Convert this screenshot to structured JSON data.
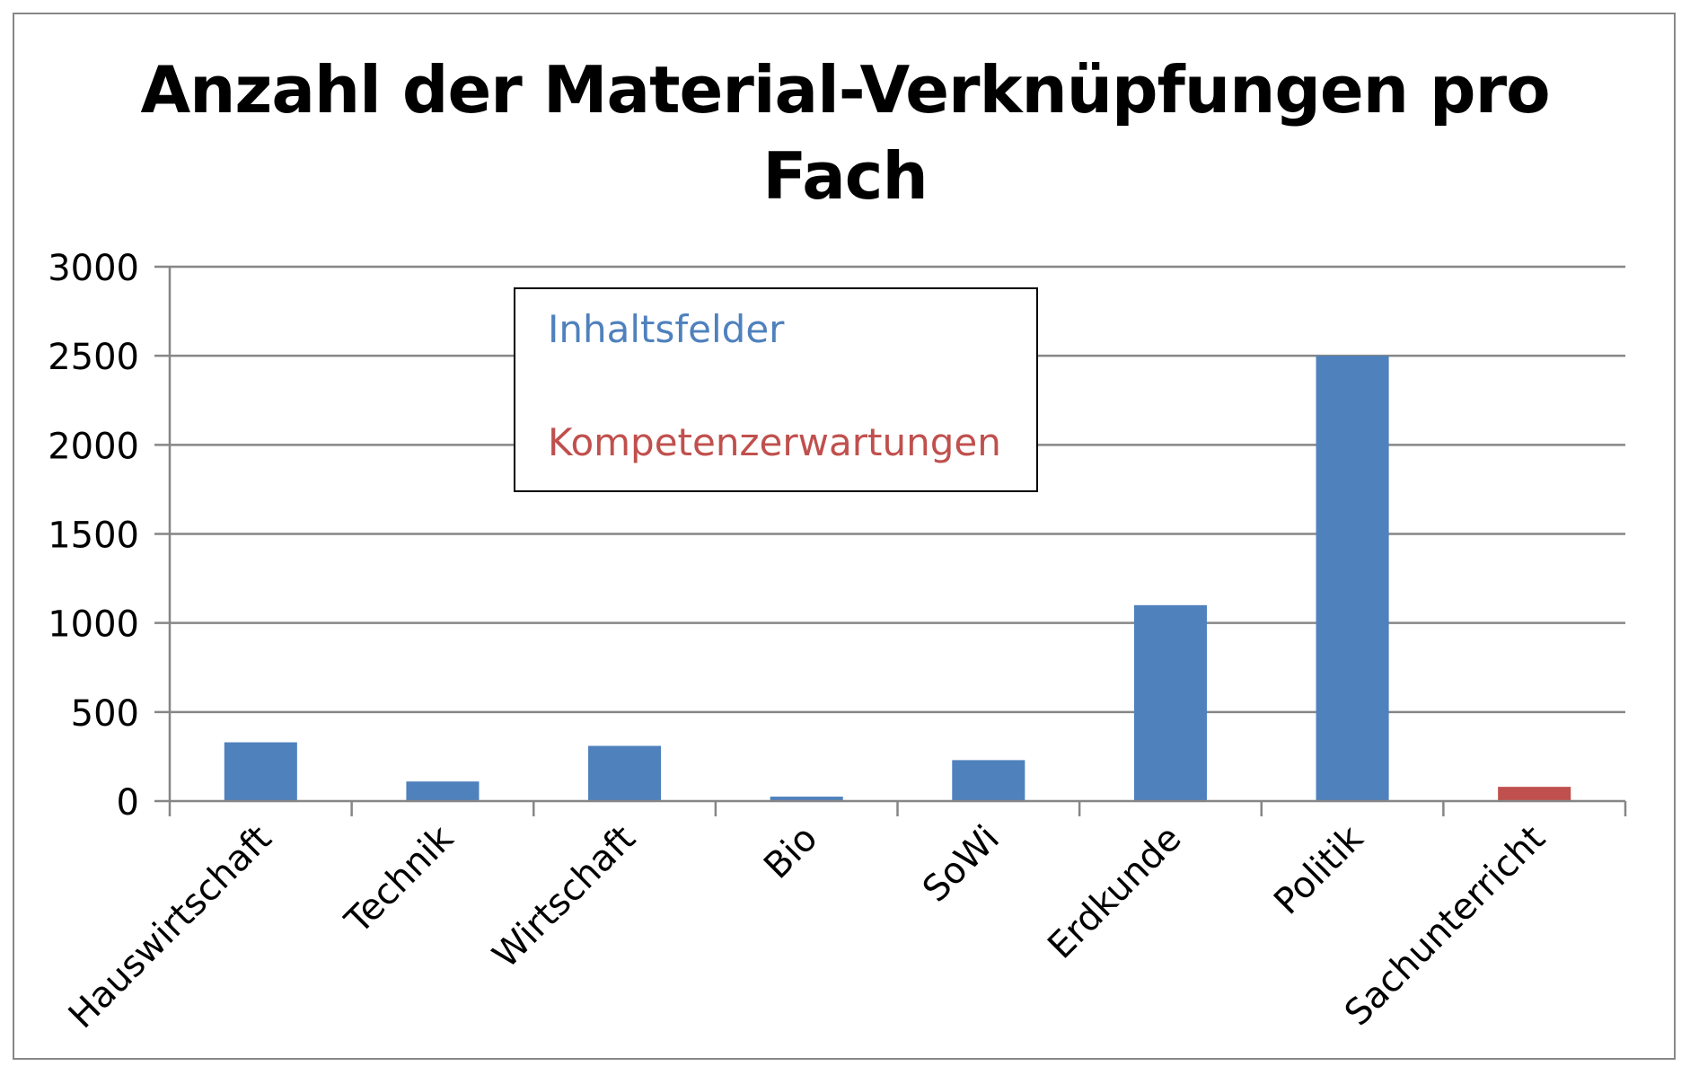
{
  "chart_data": {
    "type": "bar",
    "title_lines": [
      "Anzahl der Material-Verknüpfungen pro",
      "Fach"
    ],
    "categories": [
      "Hauswirtschaft",
      "Technik",
      "Wirtschaft",
      "Bio",
      "SoWi",
      "Erdkunde",
      "Politik",
      "Sachunterricht"
    ],
    "values": [
      330,
      110,
      310,
      25,
      230,
      1100,
      2500,
      80
    ],
    "bar_legend_index": [
      0,
      0,
      0,
      0,
      0,
      0,
      0,
      1
    ],
    "xlabel": "",
    "ylabel": "",
    "ylim": [
      0,
      3000
    ],
    "yticks": [
      0,
      500,
      1000,
      1500,
      2000,
      2500,
      3000
    ],
    "grid": true,
    "legend_placement": "top-center",
    "legend": [
      {
        "label": "Inhaltsfelder",
        "color": "#4f81bd"
      },
      {
        "label": "Kompetenzerwartungen",
        "color": "#c0504d"
      }
    ]
  },
  "colors": {
    "gridline": "#868686",
    "axis": "#868686",
    "text": "#000000"
  }
}
